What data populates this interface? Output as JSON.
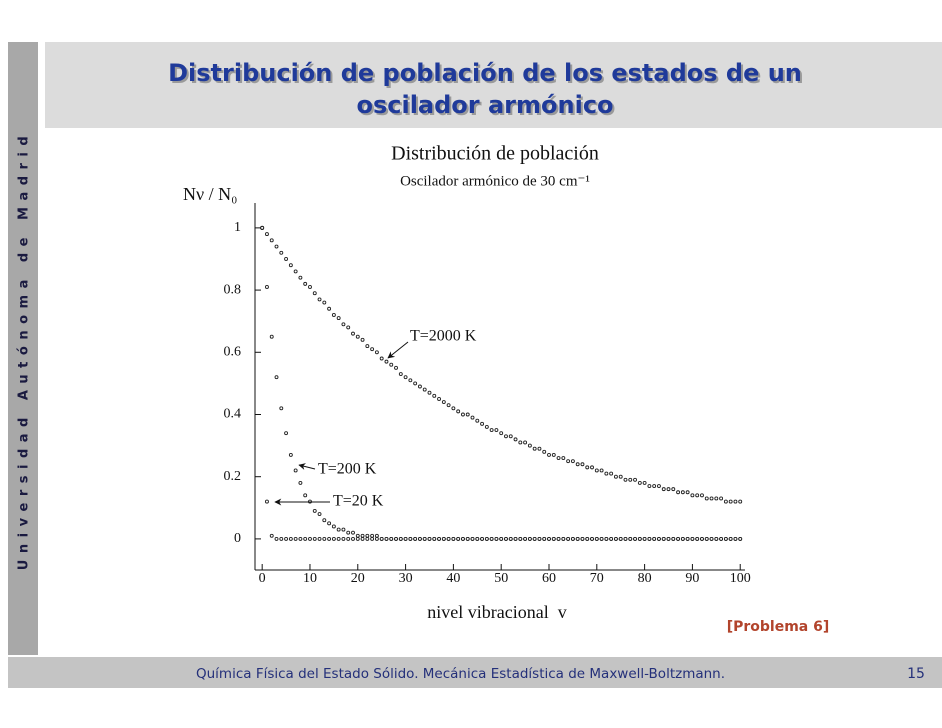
{
  "slide": {
    "side_text": "Universidad Autónoma de Madrid",
    "title_lines": [
      "Distribución de población de los estados de un",
      "oscilador armónico"
    ],
    "note": "[Problema 6]",
    "footer": "Química Física del Estado Sólido. Mecánica Estadística de Maxwell-Boltzmann.",
    "page_number": "15"
  },
  "chart_data": {
    "type": "scatter",
    "title": "Distribución de población",
    "subtitle": "Oscilador armónico de 30 cm⁻¹",
    "y_label": "Nν / N₀",
    "x_label": "nivel vibracional  v",
    "xlim": [
      -1.5,
      101
    ],
    "ylim": [
      -0.1,
      1.08
    ],
    "xticks": [
      0,
      10,
      20,
      30,
      40,
      50,
      60,
      70,
      80,
      90,
      100
    ],
    "yticks": [
      0,
      0.2,
      0.4,
      0.6,
      0.8,
      1
    ],
    "grid": false,
    "x": [
      0,
      1,
      2,
      3,
      4,
      5,
      6,
      7,
      8,
      9,
      10,
      11,
      12,
      13,
      14,
      15,
      16,
      17,
      18,
      19,
      20,
      21,
      22,
      23,
      24,
      25,
      26,
      27,
      28,
      29,
      30,
      31,
      32,
      33,
      34,
      35,
      36,
      37,
      38,
      39,
      40,
      41,
      42,
      43,
      44,
      45,
      46,
      47,
      48,
      49,
      50,
      51,
      52,
      53,
      54,
      55,
      56,
      57,
      58,
      59,
      60,
      61,
      62,
      63,
      64,
      65,
      66,
      67,
      68,
      69,
      70,
      71,
      72,
      73,
      74,
      75,
      76,
      77,
      78,
      79,
      80,
      81,
      82,
      83,
      84,
      85,
      86,
      87,
      88,
      89,
      90,
      91,
      92,
      93,
      94,
      95,
      96,
      97,
      98,
      99,
      100
    ],
    "series": [
      {
        "name": "T=2000 K",
        "color": "#222222",
        "values": [
          1,
          0.98,
          0.96,
          0.94,
          0.92,
          0.9,
          0.88,
          0.86,
          0.84,
          0.82,
          0.81,
          0.79,
          0.77,
          0.76,
          0.74,
          0.72,
          0.71,
          0.69,
          0.68,
          0.66,
          0.65,
          0.64,
          0.62,
          0.61,
          0.6,
          0.58,
          0.57,
          0.56,
          0.55,
          0.53,
          0.52,
          0.51,
          0.5,
          0.49,
          0.48,
          0.47,
          0.46,
          0.45,
          0.44,
          0.43,
          0.42,
          0.41,
          0.4,
          0.4,
          0.39,
          0.38,
          0.37,
          0.36,
          0.35,
          0.35,
          0.34,
          0.33,
          0.33,
          0.32,
          0.31,
          0.31,
          0.3,
          0.29,
          0.29,
          0.28,
          0.27,
          0.27,
          0.26,
          0.26,
          0.25,
          0.25,
          0.24,
          0.24,
          0.23,
          0.23,
          0.22,
          0.22,
          0.21,
          0.21,
          0.2,
          0.2,
          0.19,
          0.19,
          0.19,
          0.18,
          0.18,
          0.17,
          0.17,
          0.17,
          0.16,
          0.16,
          0.16,
          0.15,
          0.15,
          0.15,
          0.14,
          0.14,
          0.14,
          0.13,
          0.13,
          0.13,
          0.13,
          0.12,
          0.12,
          0.12,
          0.12
        ]
      },
      {
        "name": "T=200 K",
        "color": "#222222",
        "values": [
          1,
          0.81,
          0.65,
          0.52,
          0.42,
          0.34,
          0.27,
          0.22,
          0.18,
          0.14,
          0.12,
          0.09,
          0.08,
          0.06,
          0.05,
          0.04,
          0.03,
          0.03,
          0.02,
          0.02,
          0.01,
          0.01,
          0.01,
          0.01,
          0.01,
          0,
          0,
          0,
          0,
          0,
          0,
          0,
          0,
          0,
          0,
          0,
          0,
          0,
          0,
          0,
          0,
          0,
          0,
          0,
          0,
          0,
          0,
          0,
          0,
          0,
          0,
          0,
          0,
          0,
          0,
          0,
          0,
          0,
          0,
          0,
          0,
          0,
          0,
          0,
          0,
          0,
          0,
          0,
          0,
          0,
          0,
          0,
          0,
          0,
          0,
          0,
          0,
          0,
          0,
          0,
          0,
          0,
          0,
          0,
          0,
          0,
          0,
          0,
          0,
          0,
          0,
          0,
          0,
          0,
          0,
          0,
          0,
          0,
          0,
          0,
          0
        ]
      },
      {
        "name": "T=20 K",
        "color": "#222222",
        "values": [
          1,
          0.12,
          0.01,
          0,
          0,
          0,
          0,
          0,
          0,
          0,
          0,
          0,
          0,
          0,
          0,
          0,
          0,
          0,
          0,
          0,
          0,
          0,
          0,
          0,
          0,
          0,
          0,
          0,
          0,
          0,
          0,
          0,
          0,
          0,
          0,
          0,
          0,
          0,
          0,
          0,
          0,
          0,
          0,
          0,
          0,
          0,
          0,
          0,
          0,
          0,
          0,
          0,
          0,
          0,
          0,
          0,
          0,
          0,
          0,
          0,
          0,
          0,
          0,
          0,
          0,
          0,
          0,
          0,
          0,
          0,
          0,
          0,
          0,
          0,
          0,
          0,
          0,
          0,
          0,
          0,
          0,
          0,
          0,
          0,
          0,
          0,
          0,
          0,
          0,
          0,
          0,
          0,
          0,
          0,
          0,
          0,
          0,
          0,
          0,
          0,
          0
        ]
      }
    ]
  }
}
